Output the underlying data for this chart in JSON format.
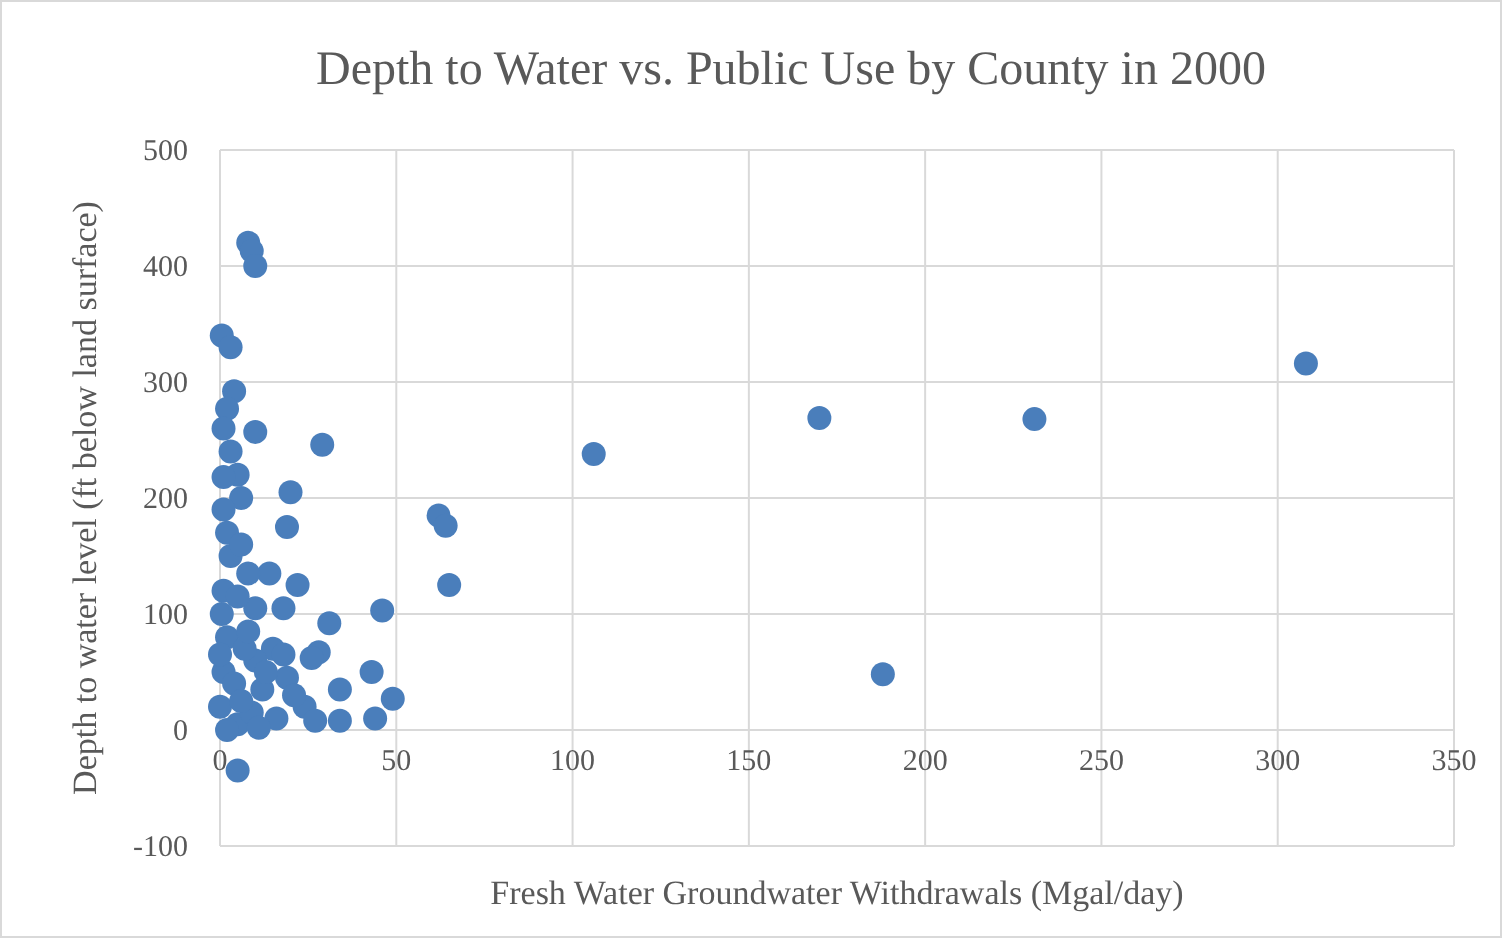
{
  "chart_data": {
    "type": "scatter",
    "title": "Depth to Water vs. Public Use by County in 2000",
    "xlabel": "Fresh Water Groundwater Withdrawals (Mgal/day)",
    "ylabel": "Depth to water level (ft below land surface)",
    "xlim": [
      0,
      350
    ],
    "xticks": [
      0,
      50,
      100,
      150,
      200,
      250,
      300,
      350
    ],
    "ylim": [
      -100,
      500
    ],
    "yticks": [
      -100,
      0,
      100,
      200,
      300,
      400,
      500
    ],
    "grid": true,
    "marker": "circle",
    "series": [
      {
        "color": "#4a7ebb",
        "x": [
          8,
          9,
          10,
          0.5,
          3,
          4,
          2,
          1,
          10,
          29,
          3,
          5,
          1,
          6,
          20,
          19,
          62,
          64,
          65,
          106,
          170,
          231,
          308,
          188,
          46,
          43,
          49,
          44,
          34,
          34,
          31,
          28,
          26,
          24,
          22,
          18,
          15,
          14,
          10,
          8,
          5,
          2,
          3,
          1,
          0.5,
          2,
          1,
          0,
          5,
          4,
          9,
          10,
          12,
          16,
          7,
          6,
          1,
          19,
          21,
          27,
          18,
          8,
          0,
          5,
          13,
          6,
          2,
          11
        ],
        "values": [
          420,
          413,
          400,
          340,
          330,
          292,
          277,
          260,
          257,
          246,
          240,
          220,
          218,
          200,
          205,
          175,
          185,
          176,
          125,
          238,
          269,
          268,
          316,
          48,
          103,
          50,
          27,
          10,
          35,
          8,
          92,
          67,
          62,
          20,
          125,
          105,
          70,
          135,
          105,
          135,
          -35,
          170,
          150,
          120,
          100,
          80,
          50,
          20,
          5,
          40,
          15,
          60,
          35,
          10,
          70,
          160,
          190,
          45,
          30,
          8,
          65,
          85,
          65,
          115,
          50,
          25,
          0,
          2
        ]
      }
    ]
  }
}
